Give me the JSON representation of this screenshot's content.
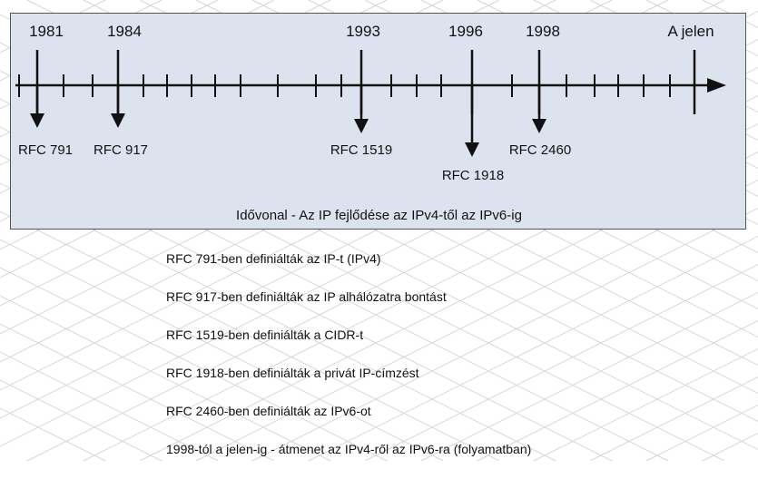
{
  "timeline": {
    "caption": "Idővonal - Az IP fejlődése az IPv4-től az IPv6-ig",
    "events": [
      {
        "year": "1981",
        "rfc": "RFC 791"
      },
      {
        "year": "1984",
        "rfc": "RFC 917"
      },
      {
        "year": "1993",
        "rfc": "RFC 1519"
      },
      {
        "year": "1996",
        "rfc": "RFC 1918"
      },
      {
        "year": "1998",
        "rfc": "RFC 2460"
      },
      {
        "year": "A jelen",
        "rfc": ""
      }
    ]
  },
  "notes": [
    "RFC 791-ben definiálták az IP-t (IPv4)",
    "RFC 917-ben definiálták az IP alhálózatra bontást",
    "RFC 1519-ben definiálták a CIDR-t",
    "RFC 1918-ben definiálták a privát IP-címzést",
    "RFC 2460-ben definiálták az IPv6-ot",
    "1998-tól a jelen-ig - átmenet az IPv4-ről az IPv6-ra (folyamatban)"
  ],
  "colors": {
    "panel_bg": "#dde3ee",
    "panel_border": "#555555",
    "line": "#111111",
    "grid": "#d4d4d4"
  }
}
